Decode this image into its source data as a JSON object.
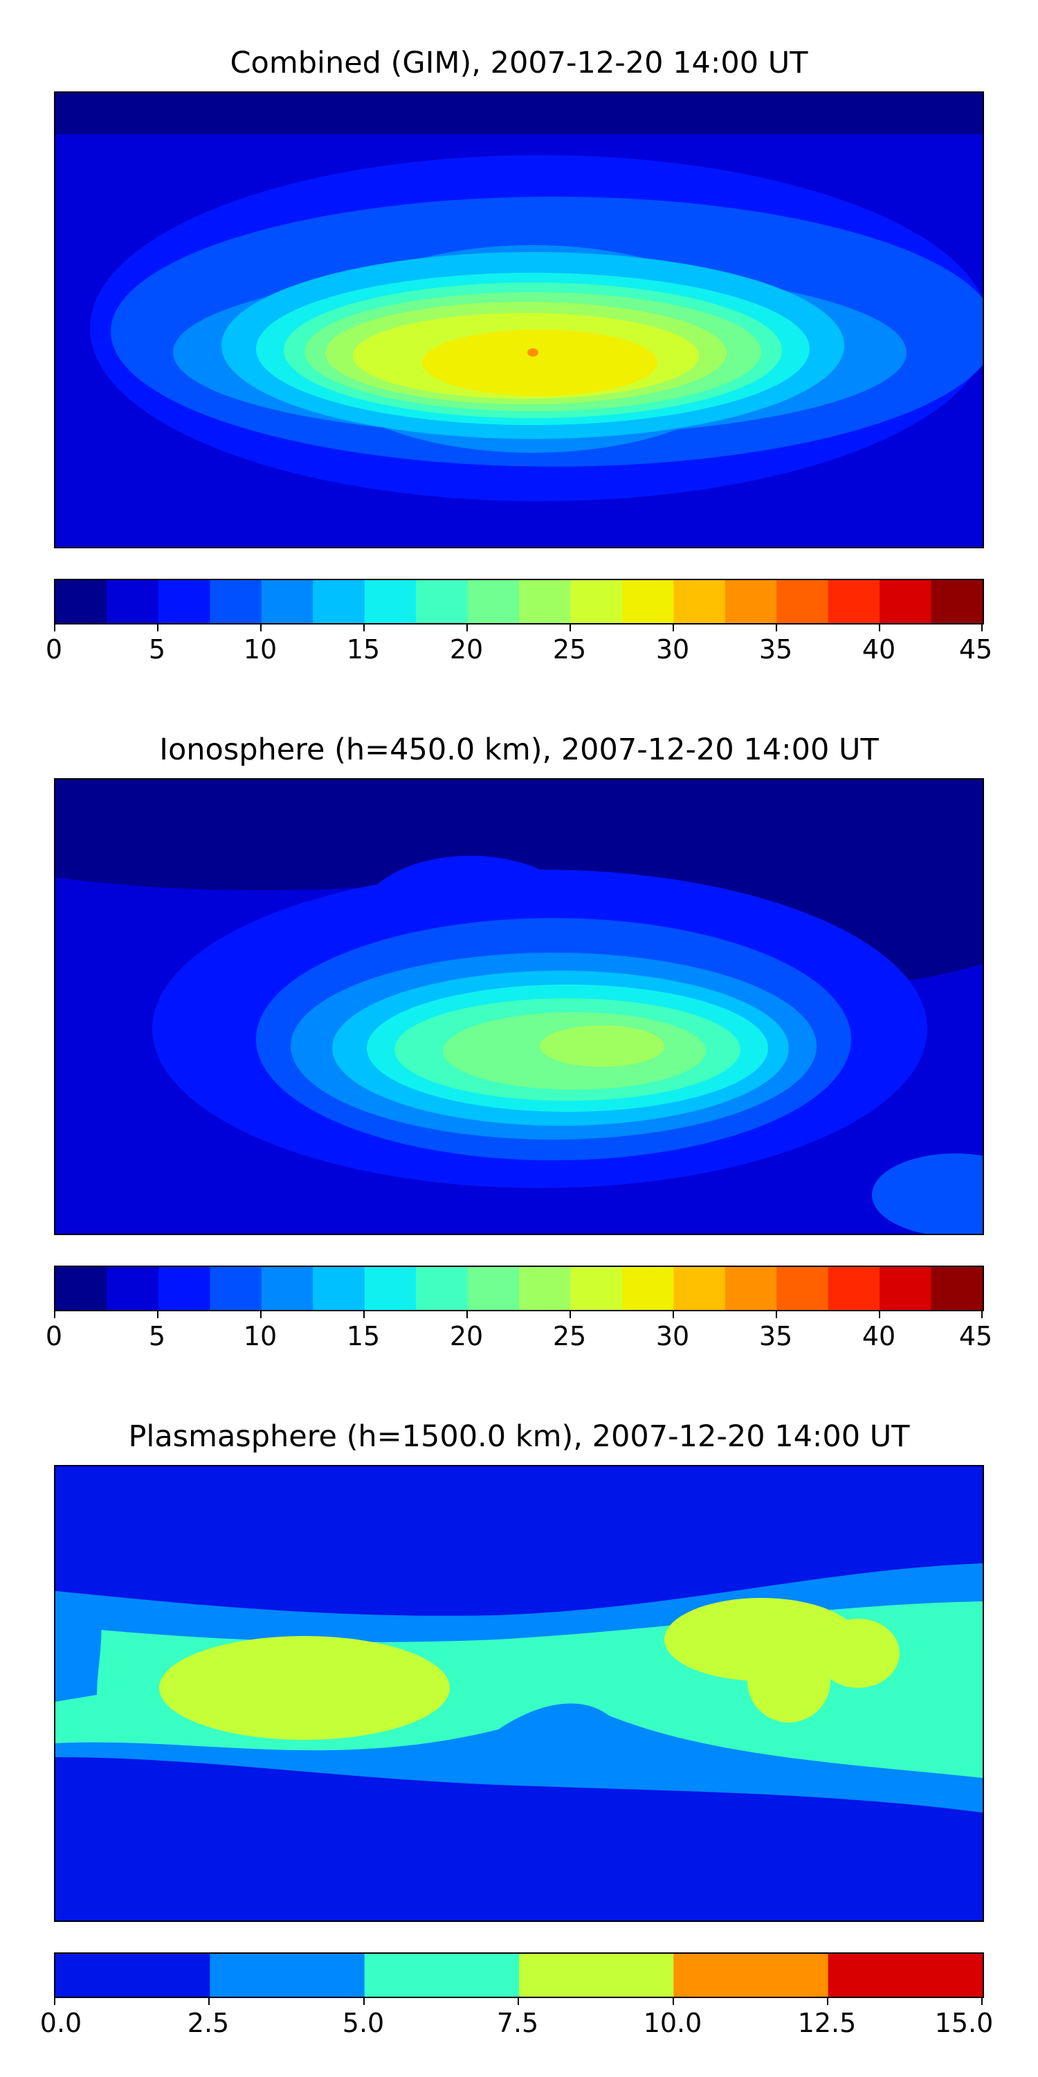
{
  "panels": [
    {
      "title": "Combined (GIM), 2007-12-20 14:00 UT",
      "colorbar": {
        "colors": [
          "#00008f",
          "#0000d8",
          "#0015ff",
          "#0050ff",
          "#0088ff",
          "#00c0ff",
          "#10f0f0",
          "#40ffc0",
          "#70ff90",
          "#a0ff60",
          "#d0ff30",
          "#f0f000",
          "#ffc000",
          "#ff9000",
          "#ff6000",
          "#ff2800",
          "#d80000",
          "#900000"
        ],
        "tick_labels": [
          "0",
          "5",
          "10",
          "15",
          "20",
          "25",
          "30",
          "35",
          "40",
          "45"
        ]
      },
      "chart_data": {
        "type": "heatmap",
        "title": "Combined (GIM), 2007-12-20 14:00 UT",
        "levels": [
          0,
          2.5,
          5,
          7.5,
          10,
          12.5,
          15,
          17.5,
          20,
          22.5,
          25,
          27.5,
          30,
          32.5,
          35,
          37.5,
          40,
          42.5,
          45
        ],
        "xlim": [
          -180,
          180
        ],
        "ylim": [
          -90,
          90
        ],
        "features": [
          {
            "description": "background polar lows",
            "value_range": [
              2.5,
              5
            ]
          },
          {
            "description": "peak over Atlantic/Africa near 0°E, 20°S",
            "value_range": [
              27.5,
              30
            ]
          }
        ]
      }
    },
    {
      "title": "Ionosphere  (h=450.0 km), 2007-12-20 14:00 UT",
      "colorbar": {
        "colors": [
          "#00008f",
          "#0000d8",
          "#0015ff",
          "#0050ff",
          "#0088ff",
          "#00c0ff",
          "#10f0f0",
          "#40ffc0",
          "#70ff90",
          "#a0ff60",
          "#d0ff30",
          "#f0f000",
          "#ffc000",
          "#ff9000",
          "#ff6000",
          "#ff2800",
          "#d80000",
          "#900000"
        ],
        "tick_labels": [
          "0",
          "5",
          "10",
          "15",
          "20",
          "25",
          "30",
          "35",
          "40",
          "45"
        ]
      },
      "chart_data": {
        "type": "heatmap",
        "title": "Ionosphere  (h=450.0 km), 2007-12-20 14:00 UT",
        "levels": [
          0,
          2.5,
          5,
          7.5,
          10,
          12.5,
          15,
          17.5,
          20,
          22.5,
          25,
          27.5,
          30,
          32.5,
          35,
          37.5,
          40,
          42.5,
          45
        ],
        "xlim": [
          -180,
          180
        ],
        "ylim": [
          -90,
          90
        ],
        "features": [
          {
            "description": "northern hemisphere low",
            "value_range": [
              0,
              2.5
            ]
          },
          {
            "description": "peak over southern Africa",
            "value_range": [
              22.5,
              25
            ]
          }
        ]
      }
    },
    {
      "title": "Plasmasphere (h=1500.0 km), 2007-12-20 14:00 UT",
      "colorbar": {
        "colors": [
          "#0015e8",
          "#0088ff",
          "#38ffc4",
          "#c4ff38",
          "#ff9000",
          "#d80000"
        ],
        "tick_labels": [
          "0.0",
          "2.5",
          "5.0",
          "7.5",
          "10.0",
          "12.5",
          "15.0"
        ]
      },
      "chart_data": {
        "type": "heatmap",
        "title": "Plasmasphere (h=1500.0 km), 2007-12-20 14:00 UT",
        "levels": [
          0,
          2.5,
          5,
          7.5,
          10,
          12.5,
          15
        ],
        "xlim": [
          -180,
          180
        ],
        "ylim": [
          -90,
          90
        ],
        "features": [
          {
            "description": "high latitudes",
            "value_range": [
              0,
              2.5
            ]
          },
          {
            "description": "equatorial band",
            "value_range": [
              5,
              7.5
            ]
          },
          {
            "description": "maxima over South America and South Asia",
            "value_range": [
              7.5,
              10
            ]
          }
        ]
      }
    }
  ]
}
